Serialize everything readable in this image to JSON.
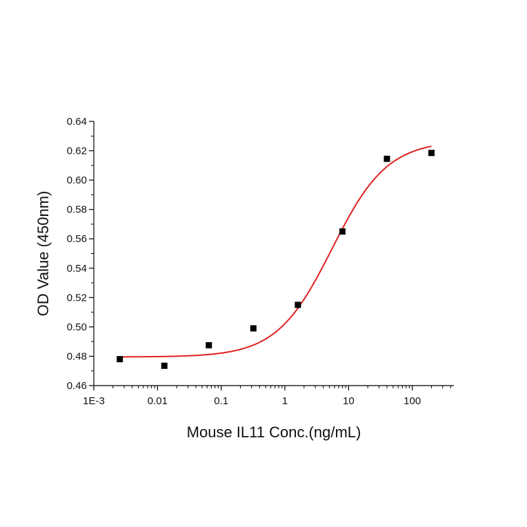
{
  "chart_data": {
    "type": "scatter",
    "x_scale": "log",
    "xlabel": "Mouse IL11 Conc.(ng/mL)",
    "ylabel": "OD Value (450nm)",
    "xlim": [
      0.001,
      450
    ],
    "ylim": [
      0.46,
      0.64
    ],
    "x_ticks": [
      {
        "value": 0.001,
        "label": "1E-3"
      },
      {
        "value": 0.01,
        "label": "0.01"
      },
      {
        "value": 0.1,
        "label": "0.1"
      },
      {
        "value": 1,
        "label": "1"
      },
      {
        "value": 10,
        "label": "10"
      },
      {
        "value": 100,
        "label": "100"
      }
    ],
    "y_ticks": [
      {
        "value": 0.46,
        "label": "0.46"
      },
      {
        "value": 0.48,
        "label": "0.48"
      },
      {
        "value": 0.5,
        "label": "0.50"
      },
      {
        "value": 0.52,
        "label": "0.52"
      },
      {
        "value": 0.54,
        "label": "0.54"
      },
      {
        "value": 0.56,
        "label": "0.56"
      },
      {
        "value": 0.58,
        "label": "0.58"
      },
      {
        "value": 0.6,
        "label": "0.60"
      },
      {
        "value": 0.62,
        "label": "0.62"
      },
      {
        "value": 0.64,
        "label": "0.64"
      }
    ],
    "grid": false,
    "series": [
      {
        "type": "scatter",
        "marker": "square",
        "color": "#000000",
        "points": [
          {
            "x": 0.00256,
            "y": 0.478
          },
          {
            "x": 0.0128,
            "y": 0.4735
          },
          {
            "x": 0.064,
            "y": 0.4875
          },
          {
            "x": 0.32,
            "y": 0.499
          },
          {
            "x": 1.6,
            "y": 0.515
          },
          {
            "x": 8,
            "y": 0.565
          },
          {
            "x": 40,
            "y": 0.6145
          },
          {
            "x": 200,
            "y": 0.6185
          }
        ]
      },
      {
        "type": "line",
        "fit": "4PL",
        "color": "#e02020",
        "x_range": [
          0.00256,
          200
        ],
        "params": {
          "bottom": 0.4795,
          "top": 0.627,
          "ec50": 5.5,
          "hill": 1.0
        }
      }
    ]
  }
}
